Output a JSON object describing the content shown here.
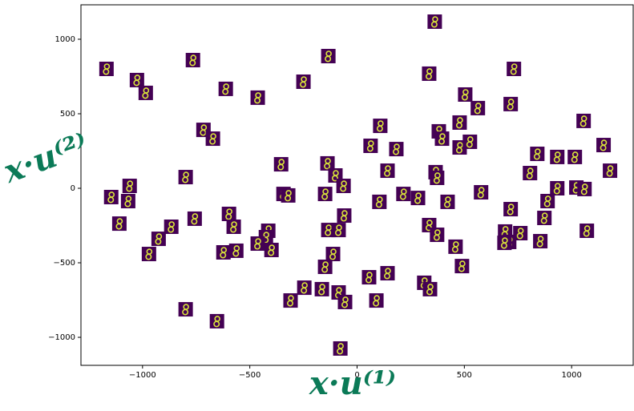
{
  "chart_data": {
    "type": "scatter",
    "xlabel": "x·u⁽¹⁾",
    "ylabel": "x·u⁽²⁾",
    "label_color": "#0b7a57",
    "thumb_color": "#440154",
    "glyph_color": "#d8e23a",
    "xlim": [
      -1287,
      1287
    ],
    "ylim": [
      -1188,
      1231
    ],
    "xticks": [
      {
        "value": -1000,
        "label": "−1000"
      },
      {
        "value": -500,
        "label": "−500"
      },
      0,
      500,
      1000
    ],
    "yticks": [
      {
        "value": -1000,
        "label": "−1000"
      },
      {
        "value": -500,
        "label": "−500"
      },
      0,
      500,
      1000
    ],
    "x": [
      -1168,
      -1026,
      -985,
      -765,
      -134,
      -612,
      -463,
      -250,
      362,
      336,
      731,
      504,
      716,
      563,
      108,
      381,
      478,
      1056,
      -716,
      -672,
      63,
      183,
      396,
      478,
      526,
      840,
      933,
      1015,
      1149,
      -354,
      -138,
      -101,
      -63,
      142,
      366,
      373,
      806,
      1179,
      -799,
      -1060,
      -1146,
      -1067,
      -343,
      -321,
      -149,
      104,
      216,
      284,
      422,
      578,
      1022,
      1060,
      933,
      888,
      716,
      -1108,
      -757,
      -866,
      -925,
      -970,
      -597,
      -575,
      -414,
      -425,
      -463,
      -399,
      -563,
      -623,
      -60,
      -134,
      -86,
      336,
      373,
      873,
      690,
      761,
      709,
      687,
      854,
      1071,
      459,
      -112,
      -149,
      489,
      56,
      142,
      313,
      340,
      -246,
      -164,
      -86,
      -56,
      -310,
      90,
      -799,
      -653,
      -78
    ],
    "values": [
      801,
      726,
      640,
      860,
      887,
      667,
      608,
      715,
      1118,
      769,
      801,
      629,
      565,
      538,
      419,
      382,
      441,
      452,
      392,
      333,
      285,
      263,
      333,
      274,
      312,
      231,
      210,
      210,
      290,
      161,
      167,
      86,
      16,
      118,
      108,
      70,
      102,
      118,
      75,
      16,
      -59,
      -86,
      -38,
      -48,
      -38,
      -91,
      -38,
      -65,
      -91,
      -27,
      5,
      -5,
      0,
      -86,
      -140,
      -237,
      -204,
      -258,
      -339,
      -441,
      -172,
      -258,
      -285,
      -328,
      -371,
      -414,
      -419,
      -430,
      -183,
      -280,
      -280,
      -247,
      -312,
      -199,
      -290,
      -301,
      -360,
      -366,
      -355,
      -285,
      -392,
      -441,
      -527,
      -522,
      -597,
      -570,
      -634,
      -677,
      -667,
      -677,
      -699,
      -763,
      -753,
      -753,
      -812,
      -892,
      -1075
    ]
  }
}
